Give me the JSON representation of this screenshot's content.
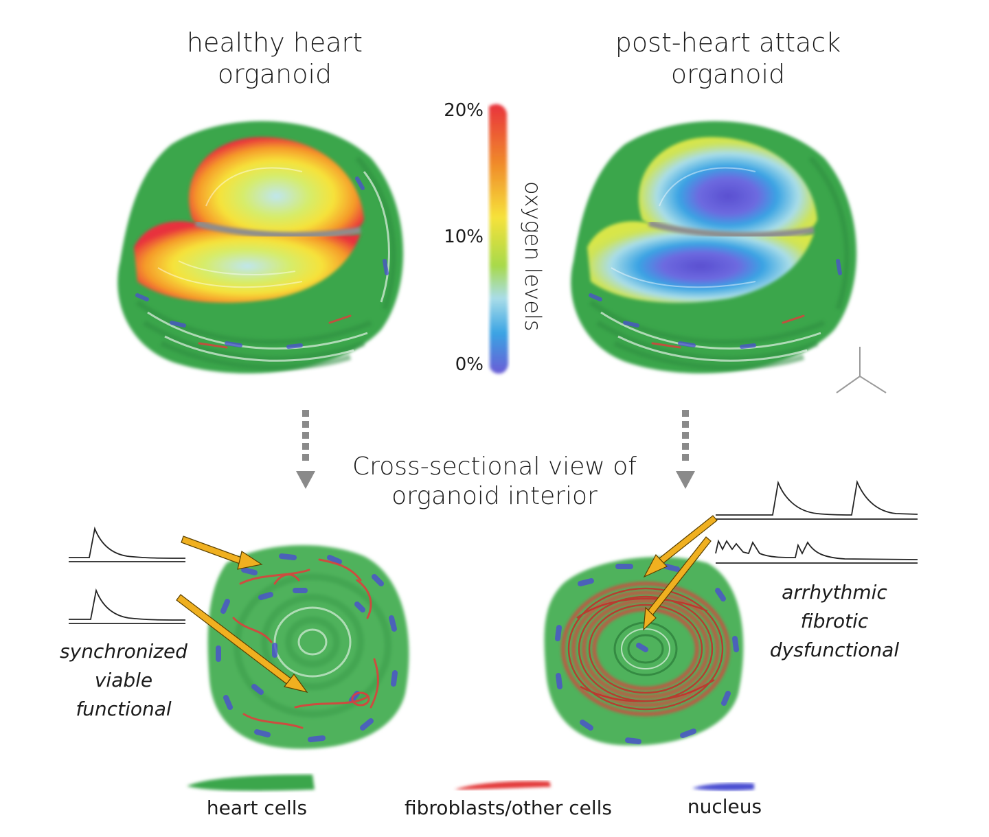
{
  "titles": {
    "left_line1": "healthy heart",
    "left_line2": "organoid",
    "right_line1": "post-heart attack",
    "right_line2": "organoid",
    "center_line1": "Cross-sectional view of",
    "center_line2": "organoid interior"
  },
  "oxygen_scale": {
    "label": "oxygen levels",
    "ticks": [
      "20%",
      "10%",
      "0%"
    ],
    "colors": [
      "#e8323c",
      "#f08a2a",
      "#f6e23a",
      "#a7d94a",
      "#a9dde8",
      "#3aa3e3",
      "#6a5cd6"
    ]
  },
  "healthy_descriptors": [
    "synchronized",
    "viable",
    "functional"
  ],
  "attack_descriptors": [
    "arrhythmic",
    "fibrotic",
    "dysfunctional"
  ],
  "legend": [
    {
      "label": "heart cells",
      "color": "#3aa64c"
    },
    {
      "label": "fibroblasts/other cells",
      "color": "#e33b3b"
    },
    {
      "label": "nucleus",
      "color": "#4b4fd1"
    }
  ],
  "colors": {
    "heart_cells": "#3aa64c",
    "fibroblast": "#e33b3b",
    "nucleus": "#4b4fd1",
    "arrow": "#f0b020",
    "dotted_arrow": "#8a8a8a"
  }
}
